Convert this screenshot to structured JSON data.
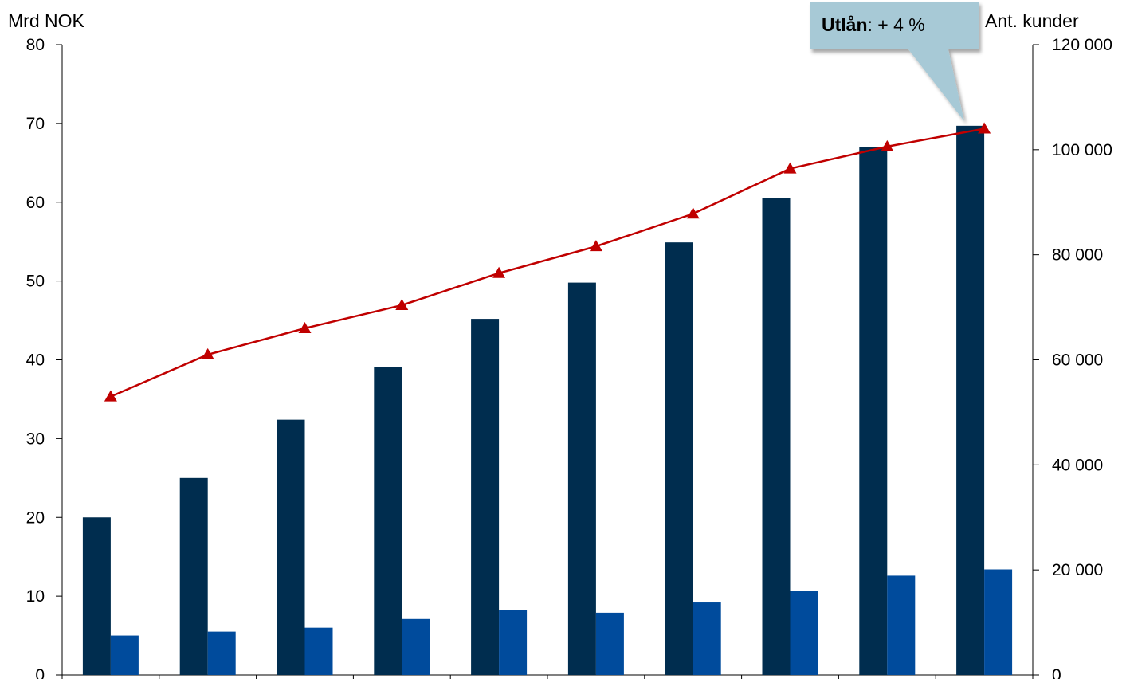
{
  "chart_data": {
    "type": "bar",
    "categories": [
      "",
      "",
      "",
      "",
      "",
      "",
      "",
      "",
      "",
      ""
    ],
    "left_axis": {
      "title": "Mrd NOK",
      "ylim": [
        0,
        80
      ],
      "ticks": [
        0,
        10,
        20,
        30,
        40,
        50,
        60,
        70,
        80
      ],
      "tick_labels": [
        "0",
        "10",
        "20",
        "30",
        "40",
        "50",
        "60",
        "70",
        "80"
      ]
    },
    "right_axis": {
      "title": "Ant. kunder",
      "ylim": [
        0,
        120000
      ],
      "ticks": [
        0,
        20000,
        40000,
        60000,
        80000,
        100000,
        120000
      ],
      "tick_labels": [
        "0",
        "20 000",
        "40 000",
        "60 000",
        "80 000",
        "100 000",
        "120 000"
      ]
    },
    "series": [
      {
        "type": "bar",
        "axis": "left",
        "color": "#002D4F",
        "values": [
          20.0,
          25.0,
          32.4,
          39.1,
          45.2,
          49.8,
          54.9,
          60.5,
          67.0,
          69.7
        ]
      },
      {
        "type": "bar",
        "axis": "left",
        "color": "#004B9C",
        "values": [
          5.0,
          5.5,
          6.0,
          7.1,
          8.2,
          7.9,
          9.2,
          10.7,
          12.6,
          13.4
        ]
      },
      {
        "type": "line",
        "axis": "right",
        "color": "#C00000",
        "marker": "triangle",
        "values": [
          53000,
          61000,
          66000,
          70400,
          76500,
          81600,
          87800,
          96400,
          100600,
          104000
        ]
      }
    ],
    "annotation": {
      "bold": "Utlån",
      "text": ": + 4 %",
      "fill": "#A7C9D6",
      "points_to_category": 9
    },
    "grid": false,
    "legend": "none"
  }
}
